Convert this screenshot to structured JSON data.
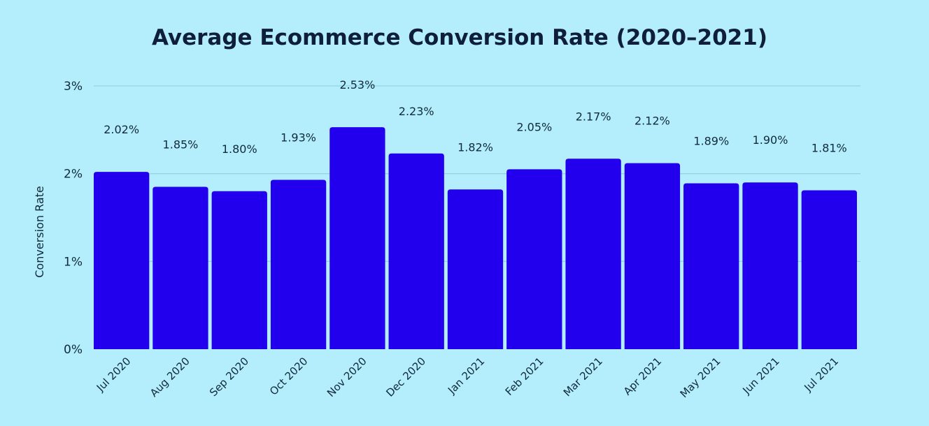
{
  "chart_data": {
    "type": "bar",
    "title": "Average Ecommerce Conversion Rate (2020–2021)",
    "xlabel": "",
    "ylabel": "Conversion Rate",
    "ylim": [
      0,
      3
    ],
    "yticks": [
      "0%",
      "1%",
      "2%",
      "3%"
    ],
    "grid": true,
    "categories": [
      "Jul 2020",
      "Aug 2020",
      "Sep 2020",
      "Oct 2020",
      "Nov 2020",
      "Dec 2020",
      "Jan 2021",
      "Feb 2021",
      "Mar 2021",
      "Apr 2021",
      "May 2021",
      "Jun 2021",
      "Jul 2021"
    ],
    "values": [
      2.02,
      1.85,
      1.8,
      1.93,
      2.53,
      2.23,
      1.82,
      2.05,
      2.17,
      2.12,
      1.89,
      1.9,
      1.81
    ],
    "data_labels": [
      "2.02%",
      "1.85%",
      "1.80%",
      "1.93%",
      "2.53%",
      "2.23%",
      "1.82%",
      "2.05%",
      "2.17%",
      "2.12%",
      "1.89%",
      "1.90%",
      "1.81%"
    ],
    "colors": {
      "background": "#b4eefc",
      "bar": "#2200ee",
      "grid": "#95d3e4",
      "text": "#0f2a3a"
    }
  }
}
